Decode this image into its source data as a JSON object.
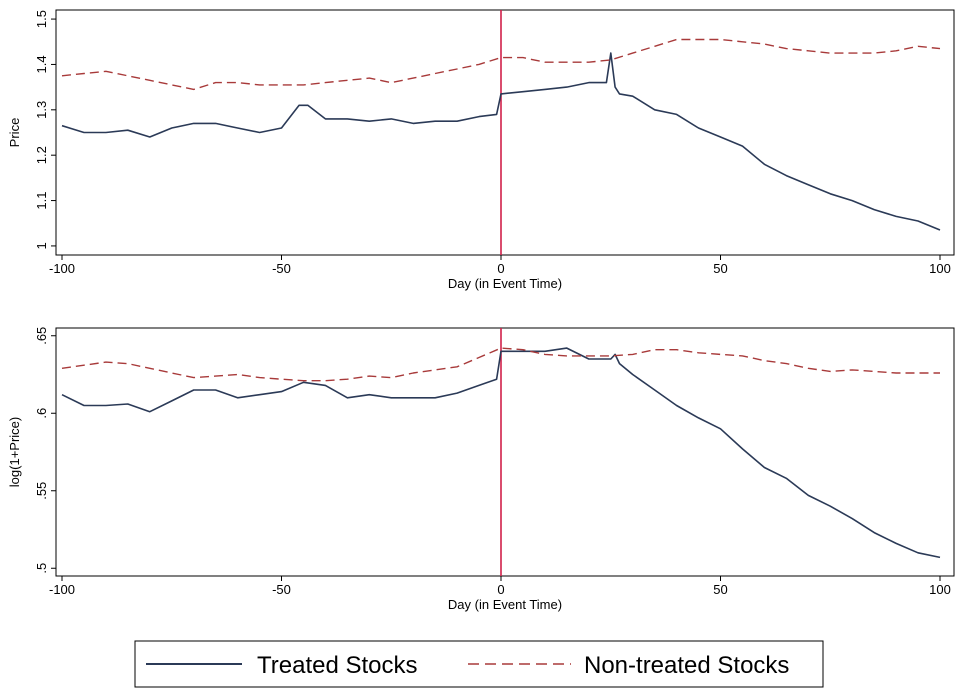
{
  "colors": {
    "treated": "#2b3a57",
    "non_treated": "#a83a3a",
    "event_line": "#d0204a",
    "axis": "#000000"
  },
  "legend": {
    "position": "bottom",
    "items": [
      {
        "label": "Treated Stocks",
        "style": "solid"
      },
      {
        "label": "Non-treated Stocks",
        "style": "dashed"
      }
    ]
  },
  "chart_data": [
    {
      "type": "line",
      "xlabel": "Day (in Event Time)",
      "ylabel": "Price",
      "xlim": [
        -100,
        100
      ],
      "ylim": [
        0.98,
        1.52
      ],
      "xticks": [
        -100,
        -50,
        0,
        50,
        100
      ],
      "xtick_labels": [
        "-100",
        "-50",
        "0",
        "50",
        "100"
      ],
      "yticks": [
        1,
        1.1,
        1.2,
        1.3,
        1.4,
        1.5
      ],
      "ytick_labels": [
        "1",
        "1.1",
        "1.2",
        "1.3",
        "1.4",
        "1.5"
      ],
      "event_day": 0,
      "grid": false,
      "series": [
        {
          "name": "Treated Stocks",
          "x": [
            -100,
            -95,
            -90,
            -85,
            -80,
            -75,
            -70,
            -65,
            -60,
            -55,
            -50,
            -46,
            -44,
            -40,
            -35,
            -30,
            -25,
            -20,
            -15,
            -10,
            -5,
            -1,
            0,
            5,
            10,
            15,
            20,
            24,
            25,
            26,
            27,
            30,
            35,
            40,
            45,
            50,
            55,
            60,
            65,
            70,
            75,
            80,
            85,
            90,
            95,
            100
          ],
          "y": [
            1.265,
            1.25,
            1.25,
            1.255,
            1.24,
            1.26,
            1.27,
            1.27,
            1.26,
            1.25,
            1.26,
            1.31,
            1.31,
            1.28,
            1.28,
            1.275,
            1.28,
            1.27,
            1.275,
            1.275,
            1.285,
            1.29,
            1.335,
            1.34,
            1.345,
            1.35,
            1.36,
            1.36,
            1.425,
            1.35,
            1.335,
            1.33,
            1.3,
            1.29,
            1.26,
            1.24,
            1.22,
            1.18,
            1.155,
            1.135,
            1.115,
            1.1,
            1.08,
            1.065,
            1.055,
            1.035
          ]
        },
        {
          "name": "Non-treated Stocks",
          "x": [
            -100,
            -95,
            -90,
            -85,
            -80,
            -75,
            -70,
            -65,
            -60,
            -55,
            -50,
            -45,
            -40,
            -35,
            -30,
            -25,
            -20,
            -15,
            -10,
            -5,
            0,
            5,
            10,
            15,
            20,
            25,
            30,
            35,
            40,
            45,
            50,
            55,
            60,
            65,
            70,
            75,
            80,
            85,
            90,
            95,
            100
          ],
          "y": [
            1.375,
            1.38,
            1.385,
            1.375,
            1.365,
            1.355,
            1.345,
            1.36,
            1.36,
            1.355,
            1.355,
            1.355,
            1.36,
            1.365,
            1.37,
            1.36,
            1.37,
            1.38,
            1.39,
            1.4,
            1.415,
            1.415,
            1.405,
            1.405,
            1.405,
            1.41,
            1.425,
            1.44,
            1.455,
            1.455,
            1.455,
            1.45,
            1.445,
            1.435,
            1.43,
            1.425,
            1.425,
            1.425,
            1.43,
            1.44,
            1.435
          ]
        }
      ]
    },
    {
      "type": "line",
      "xlabel": "Day (in Event Time)",
      "ylabel": "log(1+Price)",
      "xlim": [
        -100,
        100
      ],
      "ylim": [
        0.495,
        0.655
      ],
      "xticks": [
        -100,
        -50,
        0,
        50,
        100
      ],
      "xtick_labels": [
        "-100",
        "-50",
        "0",
        "50",
        "100"
      ],
      "yticks": [
        0.5,
        0.55,
        0.6,
        0.65
      ],
      "ytick_labels": [
        ".5",
        ".55",
        ".6",
        ".65"
      ],
      "event_day": 0,
      "grid": false,
      "series": [
        {
          "name": "Treated Stocks",
          "x": [
            -100,
            -95,
            -90,
            -85,
            -80,
            -75,
            -70,
            -65,
            -60,
            -55,
            -50,
            -45,
            -40,
            -35,
            -30,
            -25,
            -20,
            -15,
            -10,
            -5,
            -1,
            0,
            5,
            10,
            15,
            20,
            25,
            26,
            27,
            30,
            35,
            40,
            45,
            50,
            55,
            60,
            65,
            70,
            75,
            80,
            85,
            90,
            95,
            100
          ],
          "y": [
            0.612,
            0.605,
            0.605,
            0.606,
            0.601,
            0.608,
            0.615,
            0.615,
            0.61,
            0.612,
            0.614,
            0.62,
            0.618,
            0.61,
            0.612,
            0.61,
            0.61,
            0.61,
            0.613,
            0.618,
            0.622,
            0.64,
            0.64,
            0.64,
            0.642,
            0.635,
            0.635,
            0.638,
            0.632,
            0.625,
            0.615,
            0.605,
            0.597,
            0.59,
            0.577,
            0.565,
            0.558,
            0.547,
            0.54,
            0.532,
            0.523,
            0.516,
            0.51,
            0.507
          ]
        },
        {
          "name": "Non-treated Stocks",
          "x": [
            -100,
            -95,
            -90,
            -85,
            -80,
            -75,
            -70,
            -65,
            -60,
            -55,
            -50,
            -45,
            -40,
            -35,
            -30,
            -25,
            -20,
            -15,
            -10,
            -5,
            0,
            5,
            10,
            15,
            20,
            25,
            30,
            35,
            40,
            45,
            50,
            55,
            60,
            65,
            70,
            75,
            80,
            85,
            90,
            95,
            100
          ],
          "y": [
            0.629,
            0.631,
            0.633,
            0.632,
            0.629,
            0.626,
            0.623,
            0.624,
            0.625,
            0.623,
            0.622,
            0.621,
            0.621,
            0.622,
            0.624,
            0.623,
            0.626,
            0.628,
            0.63,
            0.636,
            0.642,
            0.641,
            0.638,
            0.637,
            0.637,
            0.637,
            0.638,
            0.641,
            0.641,
            0.639,
            0.638,
            0.637,
            0.634,
            0.632,
            0.629,
            0.627,
            0.628,
            0.627,
            0.626,
            0.626,
            0.626
          ]
        }
      ]
    }
  ]
}
